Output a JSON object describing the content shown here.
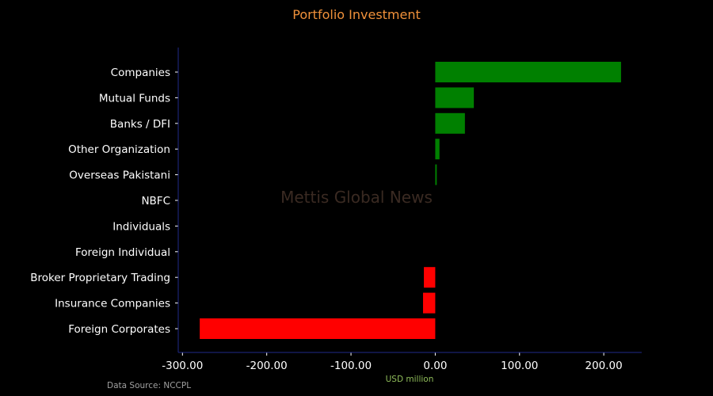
{
  "colors": {
    "positive": "#008000",
    "negative": "#ff0000",
    "title": "#f0913a",
    "axis": "#1f2a8a",
    "text": "#ffffff"
  },
  "watermark": "Mettis Global News",
  "source": "Data Source: NCCPL",
  "chart_data": {
    "type": "bar",
    "orientation": "horizontal",
    "title": "Portfolio Investment",
    "xlabel": "USD million",
    "ylabel": "",
    "xlim": [
      -305,
      245
    ],
    "xticks": [
      -300,
      -200,
      -100,
      0,
      100,
      200
    ],
    "xtick_labels": [
      "-300.00",
      "-200.00",
      "-100.00",
      "0.00",
      "100.00",
      "200.00"
    ],
    "grid": false,
    "categories": [
      "Companies",
      "Mutual Funds",
      "Banks / DFI",
      "Other Organization",
      "Overseas Pakistani",
      "NBFC",
      "Individuals",
      "Foreign Individual",
      "Broker Proprietary Trading",
      "Insurance Companies",
      "Foreign Corporates"
    ],
    "values": [
      220.5,
      45.8,
      35.2,
      5.0,
      1.8,
      0.0,
      0.0,
      0.0,
      -13.5,
      -14.5,
      -279.5
    ]
  }
}
